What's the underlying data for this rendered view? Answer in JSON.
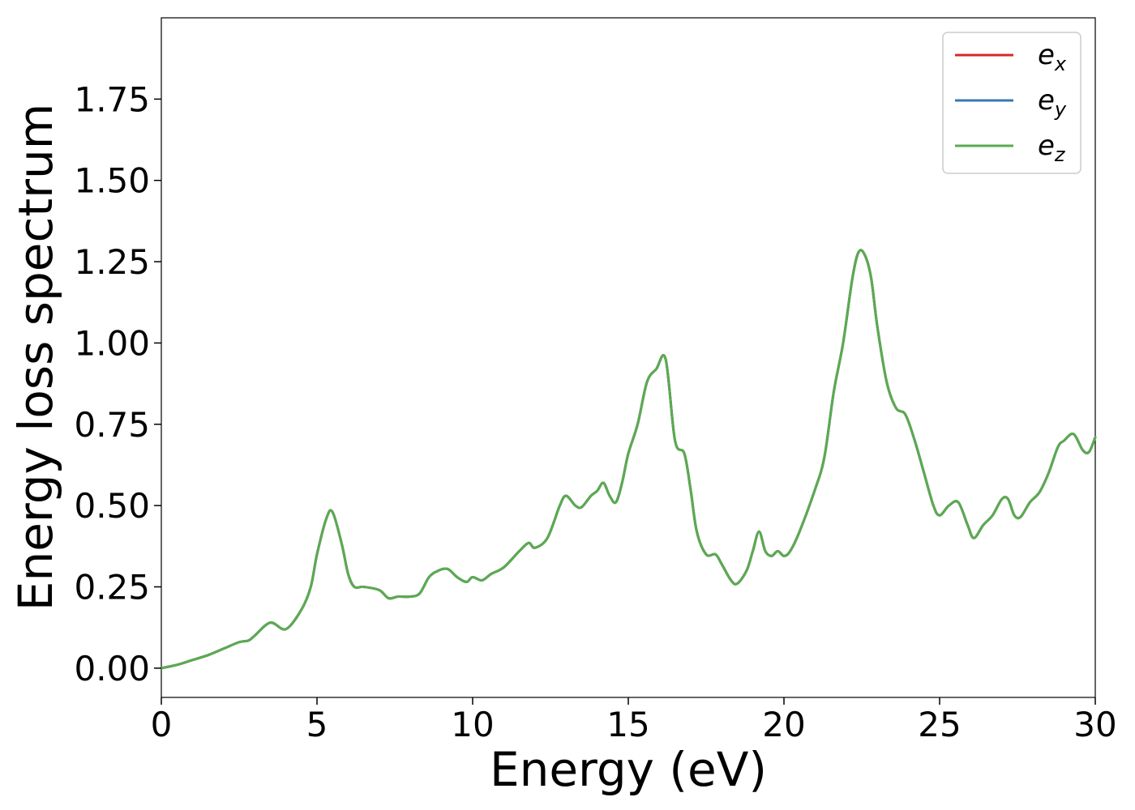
{
  "chart_data": {
    "type": "line",
    "title": "",
    "xlabel": "Energy (eV)",
    "ylabel": "Energy loss spectrum",
    "xlim": [
      0,
      30
    ],
    "ylim": [
      -0.09,
      2.0
    ],
    "xticks": [
      0,
      5,
      10,
      15,
      20,
      25,
      30
    ],
    "xtick_labels": [
      "0",
      "5",
      "10",
      "15",
      "20",
      "25",
      "30"
    ],
    "yticks": [
      0.0,
      0.25,
      0.5,
      0.75,
      1.0,
      1.25,
      1.5,
      1.75
    ],
    "ytick_labels": [
      "0.00",
      "0.25",
      "0.50",
      "0.75",
      "1.00",
      "1.25",
      "1.50",
      "1.75"
    ],
    "grid": false,
    "legend_position": "top-right",
    "series": [
      {
        "name": "e",
        "subscript": "x",
        "color": "#d62728"
      },
      {
        "name": "e",
        "subscript": "y",
        "color": "#3a78b0"
      },
      {
        "name": "e",
        "subscript": "z",
        "color": "#5aab4f"
      }
    ],
    "x": [
      0,
      0.5,
      1.0,
      1.5,
      2.0,
      2.5,
      2.8,
      3.0,
      3.5,
      4.0,
      4.5,
      4.8,
      5.0,
      5.3,
      5.5,
      5.8,
      6.0,
      6.2,
      6.5,
      7.0,
      7.3,
      7.6,
      8.0,
      8.3,
      8.6,
      8.9,
      9.2,
      9.5,
      9.8,
      10.0,
      10.3,
      10.6,
      11.0,
      11.5,
      11.8,
      12.0,
      12.4,
      12.8,
      13.0,
      13.3,
      13.5,
      13.8,
      14.0,
      14.2,
      14.4,
      14.6,
      14.8,
      15.0,
      15.3,
      15.6,
      15.9,
      16.2,
      16.5,
      16.8,
      17.0,
      17.2,
      17.5,
      17.8,
      18.0,
      18.3,
      18.5,
      18.8,
      19.0,
      19.2,
      19.4,
      19.6,
      19.8,
      20.0,
      20.2,
      20.5,
      21.0,
      21.3,
      21.6,
      21.9,
      22.2,
      22.4,
      22.6,
      22.8,
      23.0,
      23.3,
      23.6,
      23.9,
      24.2,
      24.5,
      24.8,
      25.0,
      25.3,
      25.6,
      25.9,
      26.1,
      26.4,
      26.7,
      27.0,
      27.2,
      27.4,
      27.6,
      27.9,
      28.2,
      28.5,
      28.8,
      29.0,
      29.3,
      29.6,
      29.8,
      30.0
    ],
    "values": [
      0.0,
      0.01,
      0.025,
      0.04,
      0.06,
      0.08,
      0.085,
      0.1,
      0.14,
      0.12,
      0.18,
      0.25,
      0.35,
      0.46,
      0.48,
      0.38,
      0.29,
      0.25,
      0.25,
      0.24,
      0.215,
      0.22,
      0.22,
      0.23,
      0.28,
      0.3,
      0.305,
      0.28,
      0.265,
      0.28,
      0.27,
      0.29,
      0.31,
      0.36,
      0.385,
      0.37,
      0.4,
      0.5,
      0.53,
      0.5,
      0.495,
      0.53,
      0.545,
      0.57,
      0.53,
      0.51,
      0.57,
      0.66,
      0.75,
      0.88,
      0.92,
      0.95,
      0.7,
      0.66,
      0.55,
      0.42,
      0.35,
      0.35,
      0.32,
      0.27,
      0.26,
      0.3,
      0.36,
      0.42,
      0.36,
      0.345,
      0.36,
      0.345,
      0.36,
      0.42,
      0.55,
      0.65,
      0.85,
      1.0,
      1.2,
      1.28,
      1.27,
      1.2,
      1.05,
      0.88,
      0.8,
      0.78,
      0.7,
      0.6,
      0.5,
      0.47,
      0.5,
      0.51,
      0.44,
      0.4,
      0.44,
      0.47,
      0.52,
      0.52,
      0.47,
      0.465,
      0.51,
      0.54,
      0.6,
      0.68,
      0.7,
      0.72,
      0.67,
      0.665,
      0.71
    ]
  }
}
